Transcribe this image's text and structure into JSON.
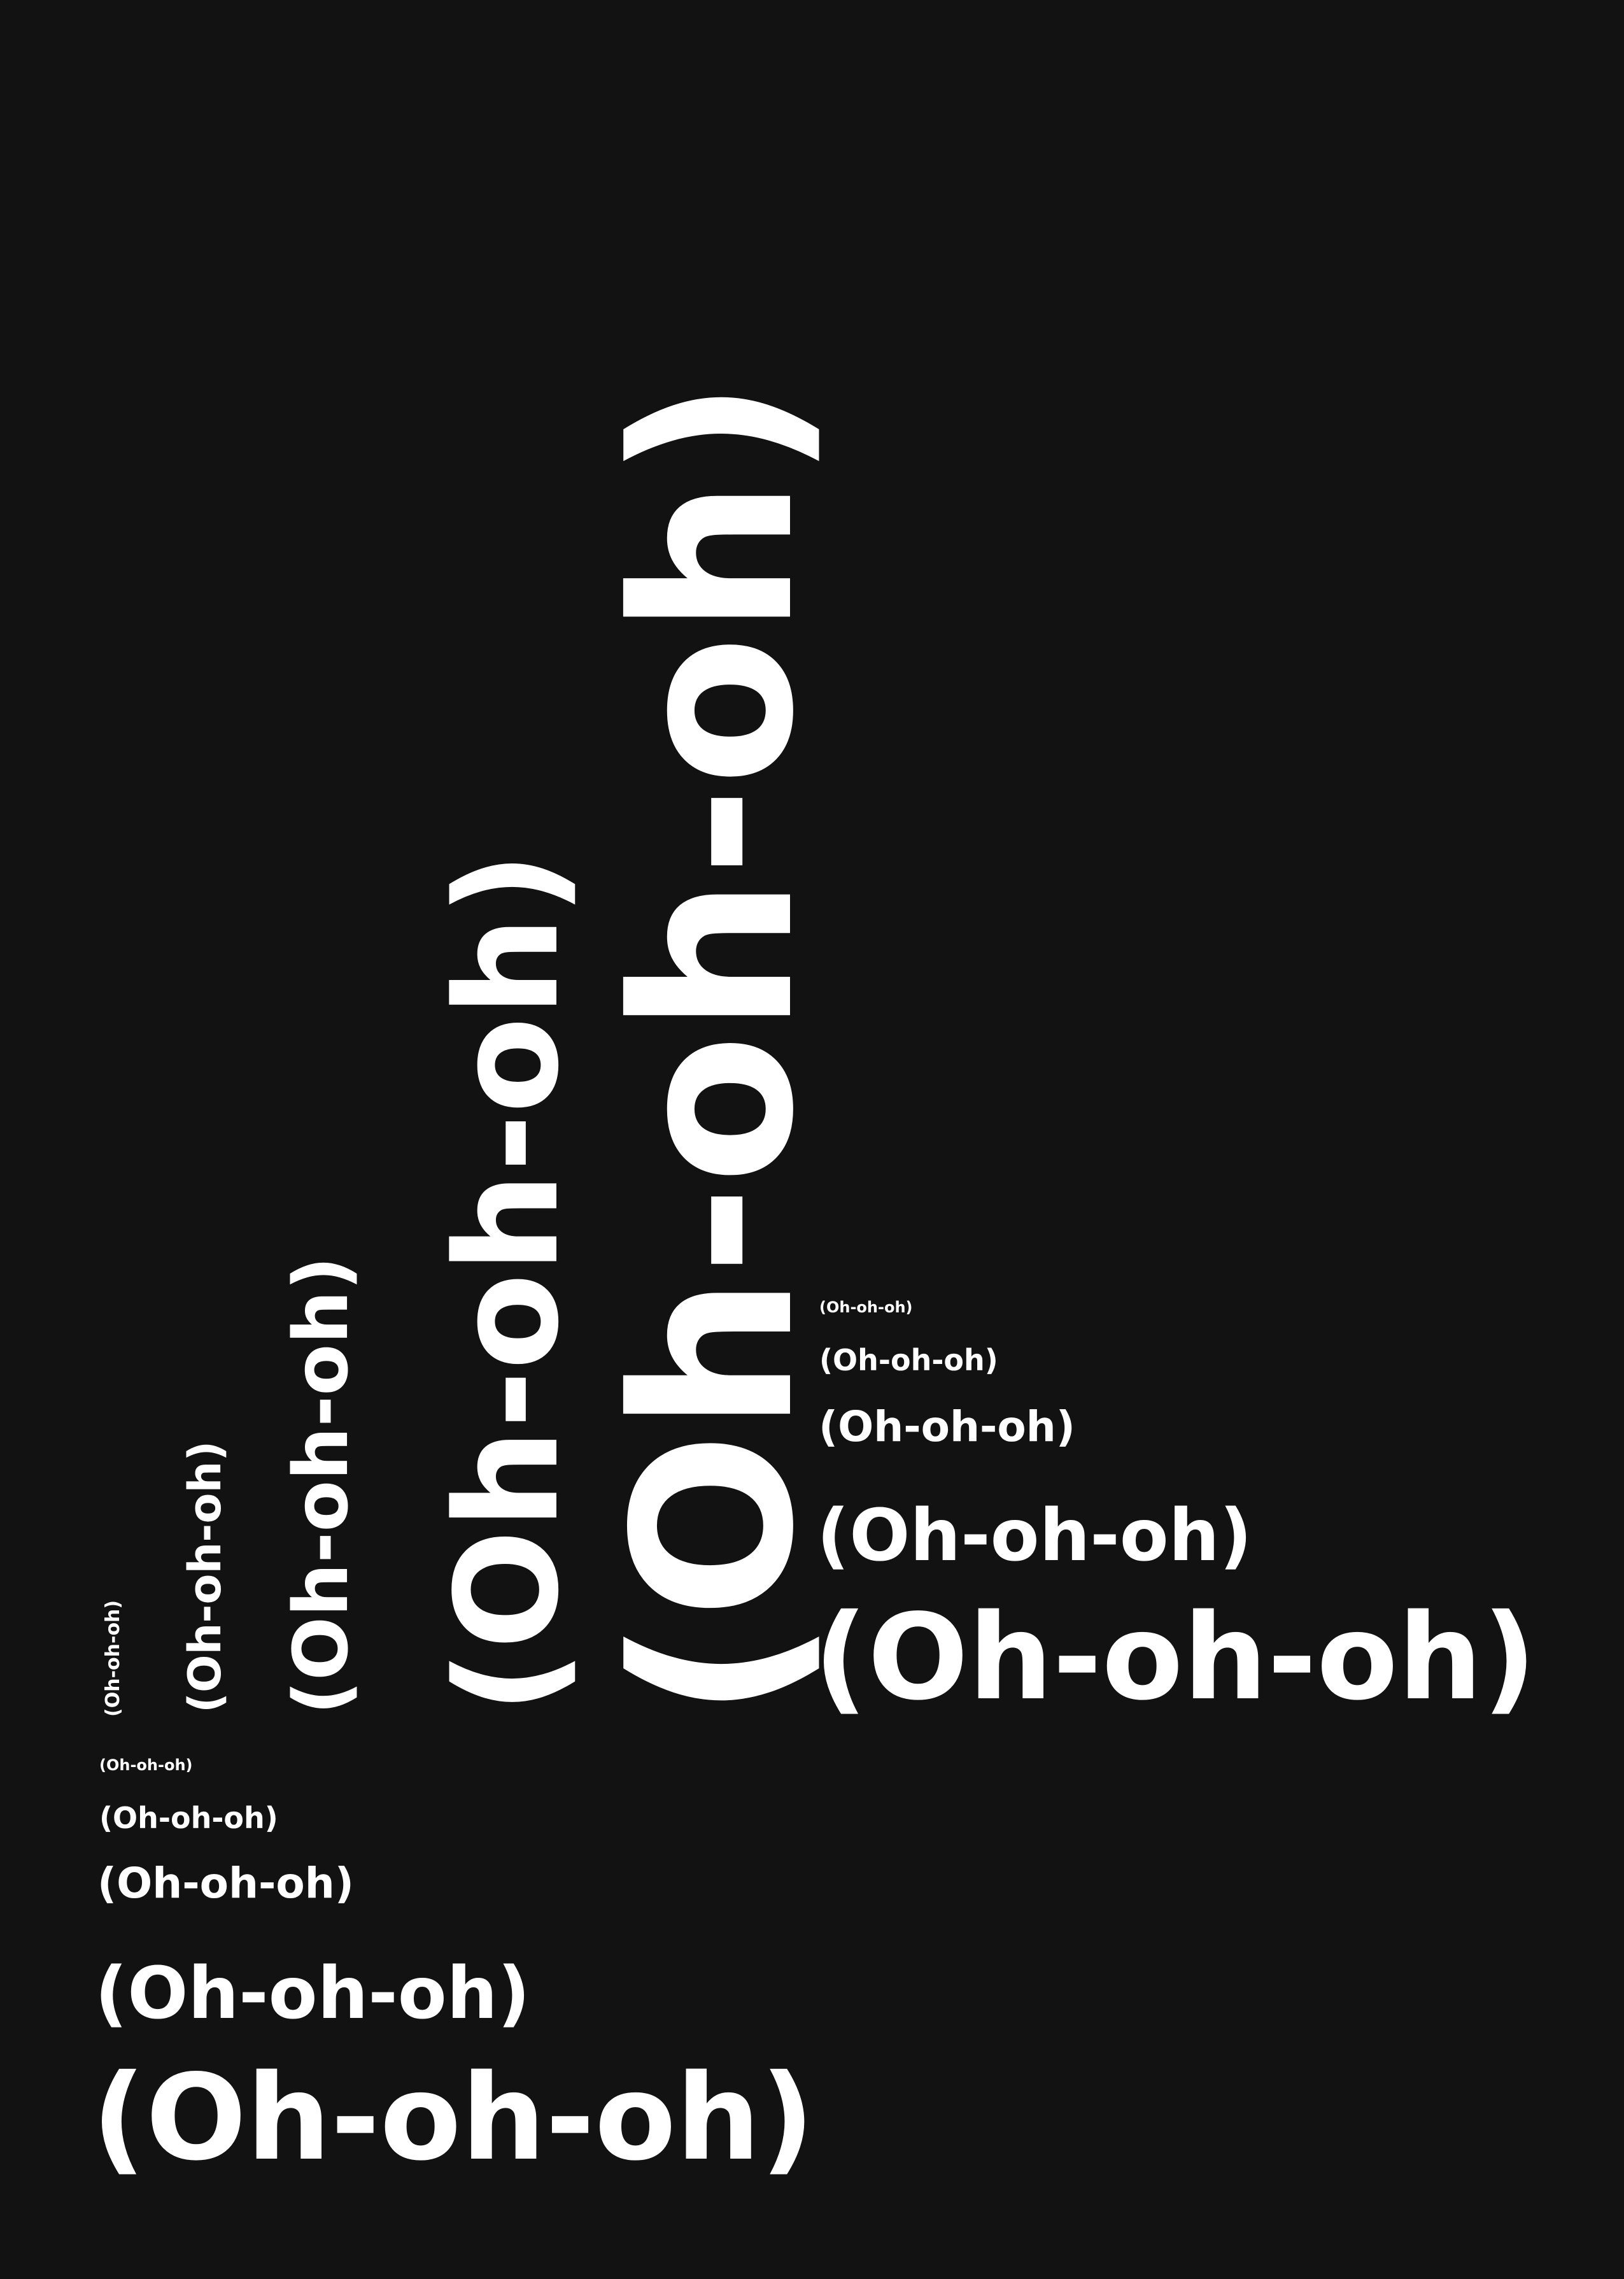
{
  "poster": {
    "background_color": "#121212",
    "text_color": "#ffffff",
    "vertical_phrases": [
      "(Oh-oh-oh)",
      "(Oh-oh-oh)",
      "(Oh-oh-oh)",
      "(Oh-oh-oh)",
      "(Oh-oh-oh)"
    ],
    "right_phrases": [
      "(Oh-oh-oh)",
      "(Oh-oh-oh)",
      "(Oh-oh-oh)",
      "(Oh-oh-oh)",
      "(Oh-oh-oh)"
    ],
    "bottom_phrases": [
      "(Oh-oh-oh)",
      "(Oh-oh-oh)",
      "(Oh-oh-oh)",
      "(Oh-oh-oh)",
      "(Oh-oh-oh)"
    ]
  }
}
